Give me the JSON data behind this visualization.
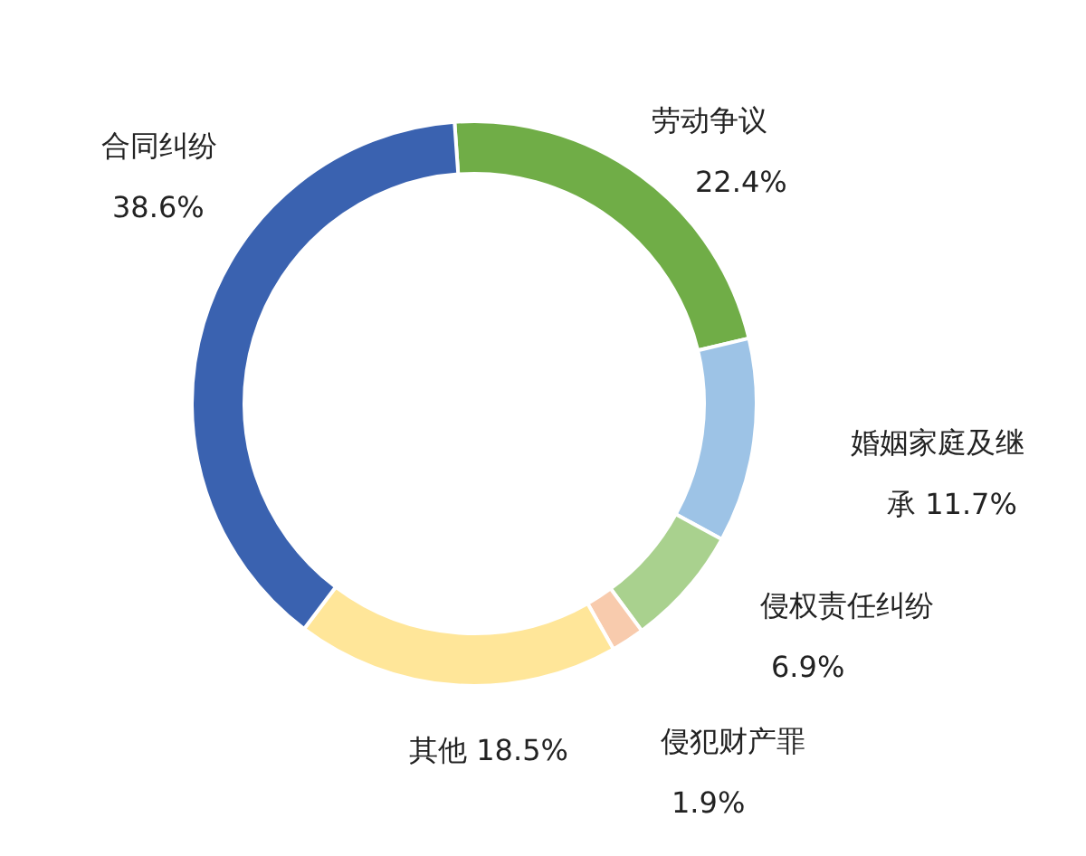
{
  "chart_data": {
    "type": "donut",
    "categories": [
      "劳动争议",
      "婚姻家庭及继承",
      "侵权责任纠纷",
      "侵犯财产罪",
      "其他",
      "合同纠纷"
    ],
    "values": [
      22.4,
      11.7,
      6.9,
      1.9,
      18.5,
      38.6
    ],
    "colors": [
      "#70ad47",
      "#9dc3e6",
      "#a9d18e",
      "#f8cbad",
      "#ffe699",
      "#3a62b0"
    ],
    "value_labels": [
      "22.4%",
      "11.7%",
      "6.9%",
      "1.9%",
      "18.5%",
      "38.6%"
    ]
  }
}
